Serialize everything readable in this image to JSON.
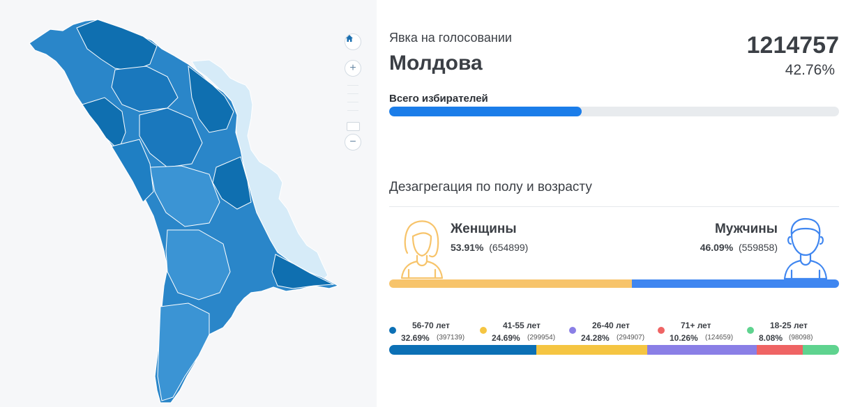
{
  "header": {
    "subtitle": "Явка на голосовании",
    "region": "Молдова",
    "turnout_count": "1214757",
    "turnout_percent": "42.76%"
  },
  "voters": {
    "label": "Всего избирателей",
    "progress_fraction": 0.4276,
    "color": "#1b7de9"
  },
  "map": {
    "controls": {
      "home_icon": "home-icon",
      "zoom_in": "+",
      "zoom_out": "−"
    },
    "colors": {
      "dark": "#0f6fb0",
      "medium": "#2a86c9",
      "light": "#4aa0dc",
      "transnistria": "#d6ebf8"
    }
  },
  "disaggregation": {
    "title": "Дезагрегация по полу и возрасту",
    "women": {
      "label": "Женщины",
      "percent": "53.91%",
      "count": "(654899)",
      "fraction": 0.5391,
      "color": "#f7c46b",
      "icon": "woman-icon"
    },
    "men": {
      "label": "Мужчины",
      "percent": "46.09%",
      "count": "(559858)",
      "fraction": 0.4609,
      "color": "#3f86f0",
      "icon": "man-icon"
    }
  },
  "age_groups": [
    {
      "range": "56-70 лет",
      "percent": "32.69%",
      "count": "(397139)",
      "fraction": 0.3269,
      "color": "#0c70b5"
    },
    {
      "range": "41-55 лет",
      "percent": "24.69%",
      "count": "(299954)",
      "fraction": 0.2469,
      "color": "#f5c542"
    },
    {
      "range": "26-40 лет",
      "percent": "24.28%",
      "count": "(294907)",
      "fraction": 0.2428,
      "color": "#8a7fe6"
    },
    {
      "range": "71+ лет",
      "percent": "10.26%",
      "count": "(124659)",
      "fraction": 0.1026,
      "color": "#ef6464"
    },
    {
      "range": "18-25 лет",
      "percent": "8.08%",
      "count": "(98098)",
      "fraction": 0.0808,
      "color": "#5fd38f"
    }
  ]
}
